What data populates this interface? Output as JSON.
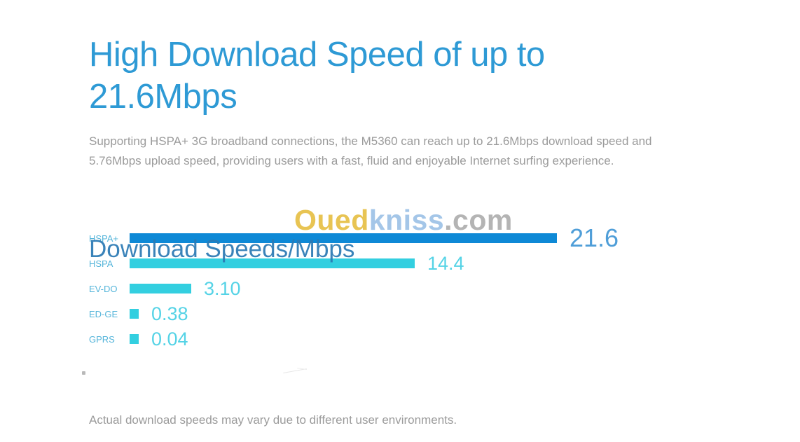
{
  "page": {
    "heading_lines": [
      "High Download Speed of up to",
      "21.6Mbps"
    ],
    "description_lines": [
      "Supporting HSPA+ 3G broadband connections, the M5360 can reach up to 21.6Mbps download speed and",
      "5.76Mbps upload speed, providing users with a fast, fluid and enjoyable Internet surfing experience."
    ],
    "footnote": "Actual download speeds may vary due to different user environments."
  },
  "watermark": {
    "part1": "Oued",
    "part2": "kniss",
    "part3": ".com",
    "colors": {
      "part1": "#e8c453",
      "part2": "#a4c6e8",
      "part3": "#b4b4b4"
    }
  },
  "chart_data": {
    "type": "bar",
    "orientation": "horizontal",
    "title": "Download Speeds/Mbps",
    "categories": [
      "HSPA+",
      "HSPA",
      "EV-DO",
      "ED-GE",
      "GPRS"
    ],
    "values": [
      21.6,
      14.4,
      3.1,
      0.38,
      0.04
    ],
    "value_labels": [
      "21.6",
      "14.4",
      "3.10",
      "0.38",
      "0.04"
    ],
    "xlim": [
      0,
      21.6
    ],
    "unit": "Mbps",
    "grid": false,
    "legend": false,
    "bar_colors": [
      "#0e89d6",
      "#33cfe0",
      "#33cfe0",
      "#33cfe0",
      "#33cfe0"
    ],
    "value_colors": [
      "#4f9ed8",
      "#55d3e6",
      "#55d3e6",
      "#55d3e6",
      "#55d3e6"
    ],
    "category_label_color": "#55b5da",
    "title_color": "#2b7ab4"
  },
  "colors": {
    "brand_blue": "#2e9ad5",
    "body_text_gray": "#9b9b9b",
    "background": "#ffffff"
  }
}
